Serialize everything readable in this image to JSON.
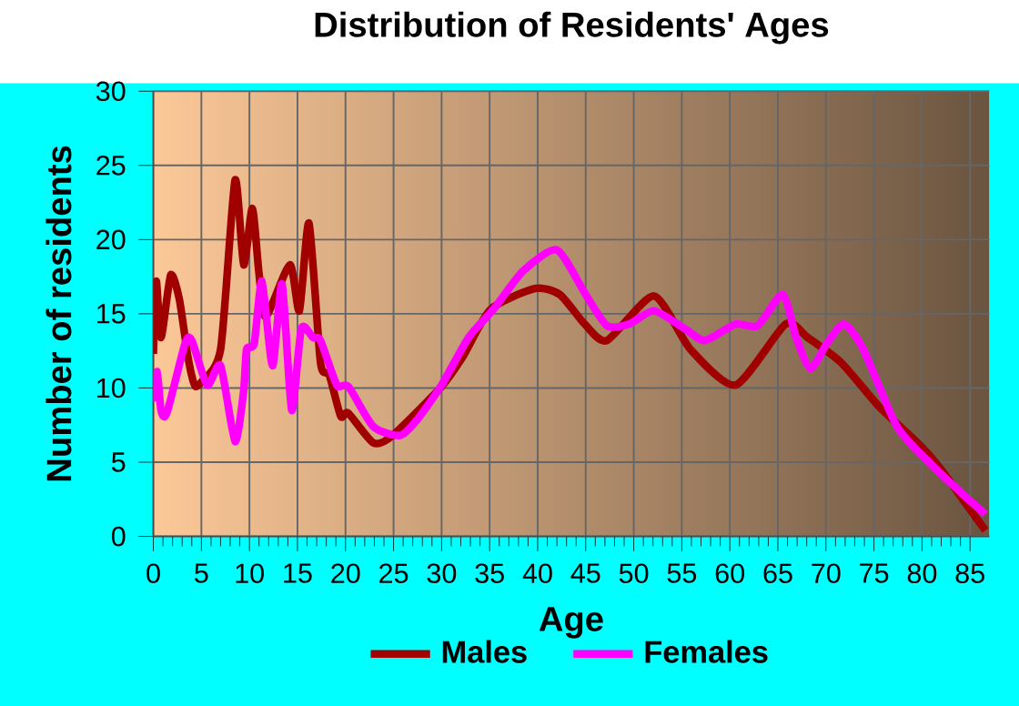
{
  "chart_data": {
    "type": "line",
    "title": "Distribution of Residents' Ages",
    "xlabel": "Age",
    "ylabel": "Number of residents",
    "xlim": [
      0,
      87
    ],
    "ylim": [
      0,
      30
    ],
    "xticks": [
      0,
      5,
      10,
      15,
      20,
      25,
      30,
      35,
      40,
      45,
      50,
      55,
      60,
      65,
      70,
      75,
      80,
      85
    ],
    "yticks": [
      0,
      5,
      10,
      15,
      20,
      25,
      30
    ],
    "grid": true,
    "legend": "bottom",
    "marker": "none",
    "line_style": "solid",
    "series": [
      {
        "name": "Males",
        "color": "#a00000",
        "x": [
          0,
          0.3,
          0.8,
          1.8,
          2.7,
          3.6,
          4.3,
          5,
          7,
          8.5,
          9.4,
          10.3,
          11,
          11.7,
          14.2,
          15.2,
          16.2,
          17.4,
          18.3,
          19.5,
          20.3,
          22.9,
          24.9,
          30,
          32.2,
          35.1,
          39.7,
          42.3,
          44.9,
          47.2,
          52.1,
          55.9,
          60.6,
          65.8,
          68.1,
          71.6,
          75.6,
          79.7,
          82,
          84.9,
          86.6
        ],
        "values": [
          12.3,
          17.2,
          13.4,
          17.6,
          16,
          12.1,
          10.2,
          10.4,
          12.6,
          24,
          18.3,
          22.1,
          17.7,
          14.8,
          18.3,
          15.2,
          21.1,
          11.7,
          10.9,
          8.1,
          8.3,
          6.3,
          6.8,
          10.1,
          12.1,
          15.3,
          16.7,
          16.3,
          14.3,
          13.2,
          16.2,
          12.6,
          10.2,
          14.3,
          13.4,
          11.7,
          8.7,
          6.2,
          4.5,
          1.9,
          0.4
        ]
      },
      {
        "name": "Females",
        "color": "#ff00ff",
        "x": [
          0,
          0.4,
          0.8,
          1.4,
          3.3,
          4,
          5.6,
          7,
          8.5,
          9.4,
          9.7,
          10.5,
          11.3,
          12.4,
          13.4,
          14.4,
          15.4,
          16.6,
          17.4,
          19.1,
          20.3,
          22.9,
          25.7,
          27.5,
          30,
          32.8,
          35.4,
          38.5,
          42,
          44.9,
          47.2,
          49.5,
          52.1,
          55.3,
          57.4,
          60.6,
          62.9,
          65.5,
          66.9,
          68.4,
          70.1,
          71.9,
          73.9,
          77.4,
          80.9,
          84.3,
          86.6
        ],
        "values": [
          9.1,
          11.1,
          8.5,
          8.3,
          13,
          13.2,
          10.2,
          11.5,
          6.4,
          9.8,
          12.6,
          13,
          17.2,
          11.5,
          17,
          8.5,
          14,
          13.4,
          13.2,
          10.2,
          10.1,
          7.4,
          6.8,
          7.9,
          10.2,
          13.4,
          15.3,
          17.9,
          19.3,
          16.4,
          14.2,
          14.3,
          15.2,
          14,
          13.2,
          14.3,
          14.2,
          16.3,
          13.4,
          11.3,
          13,
          14.3,
          12.6,
          7.4,
          4.9,
          2.8,
          1.5
        ]
      }
    ]
  }
}
